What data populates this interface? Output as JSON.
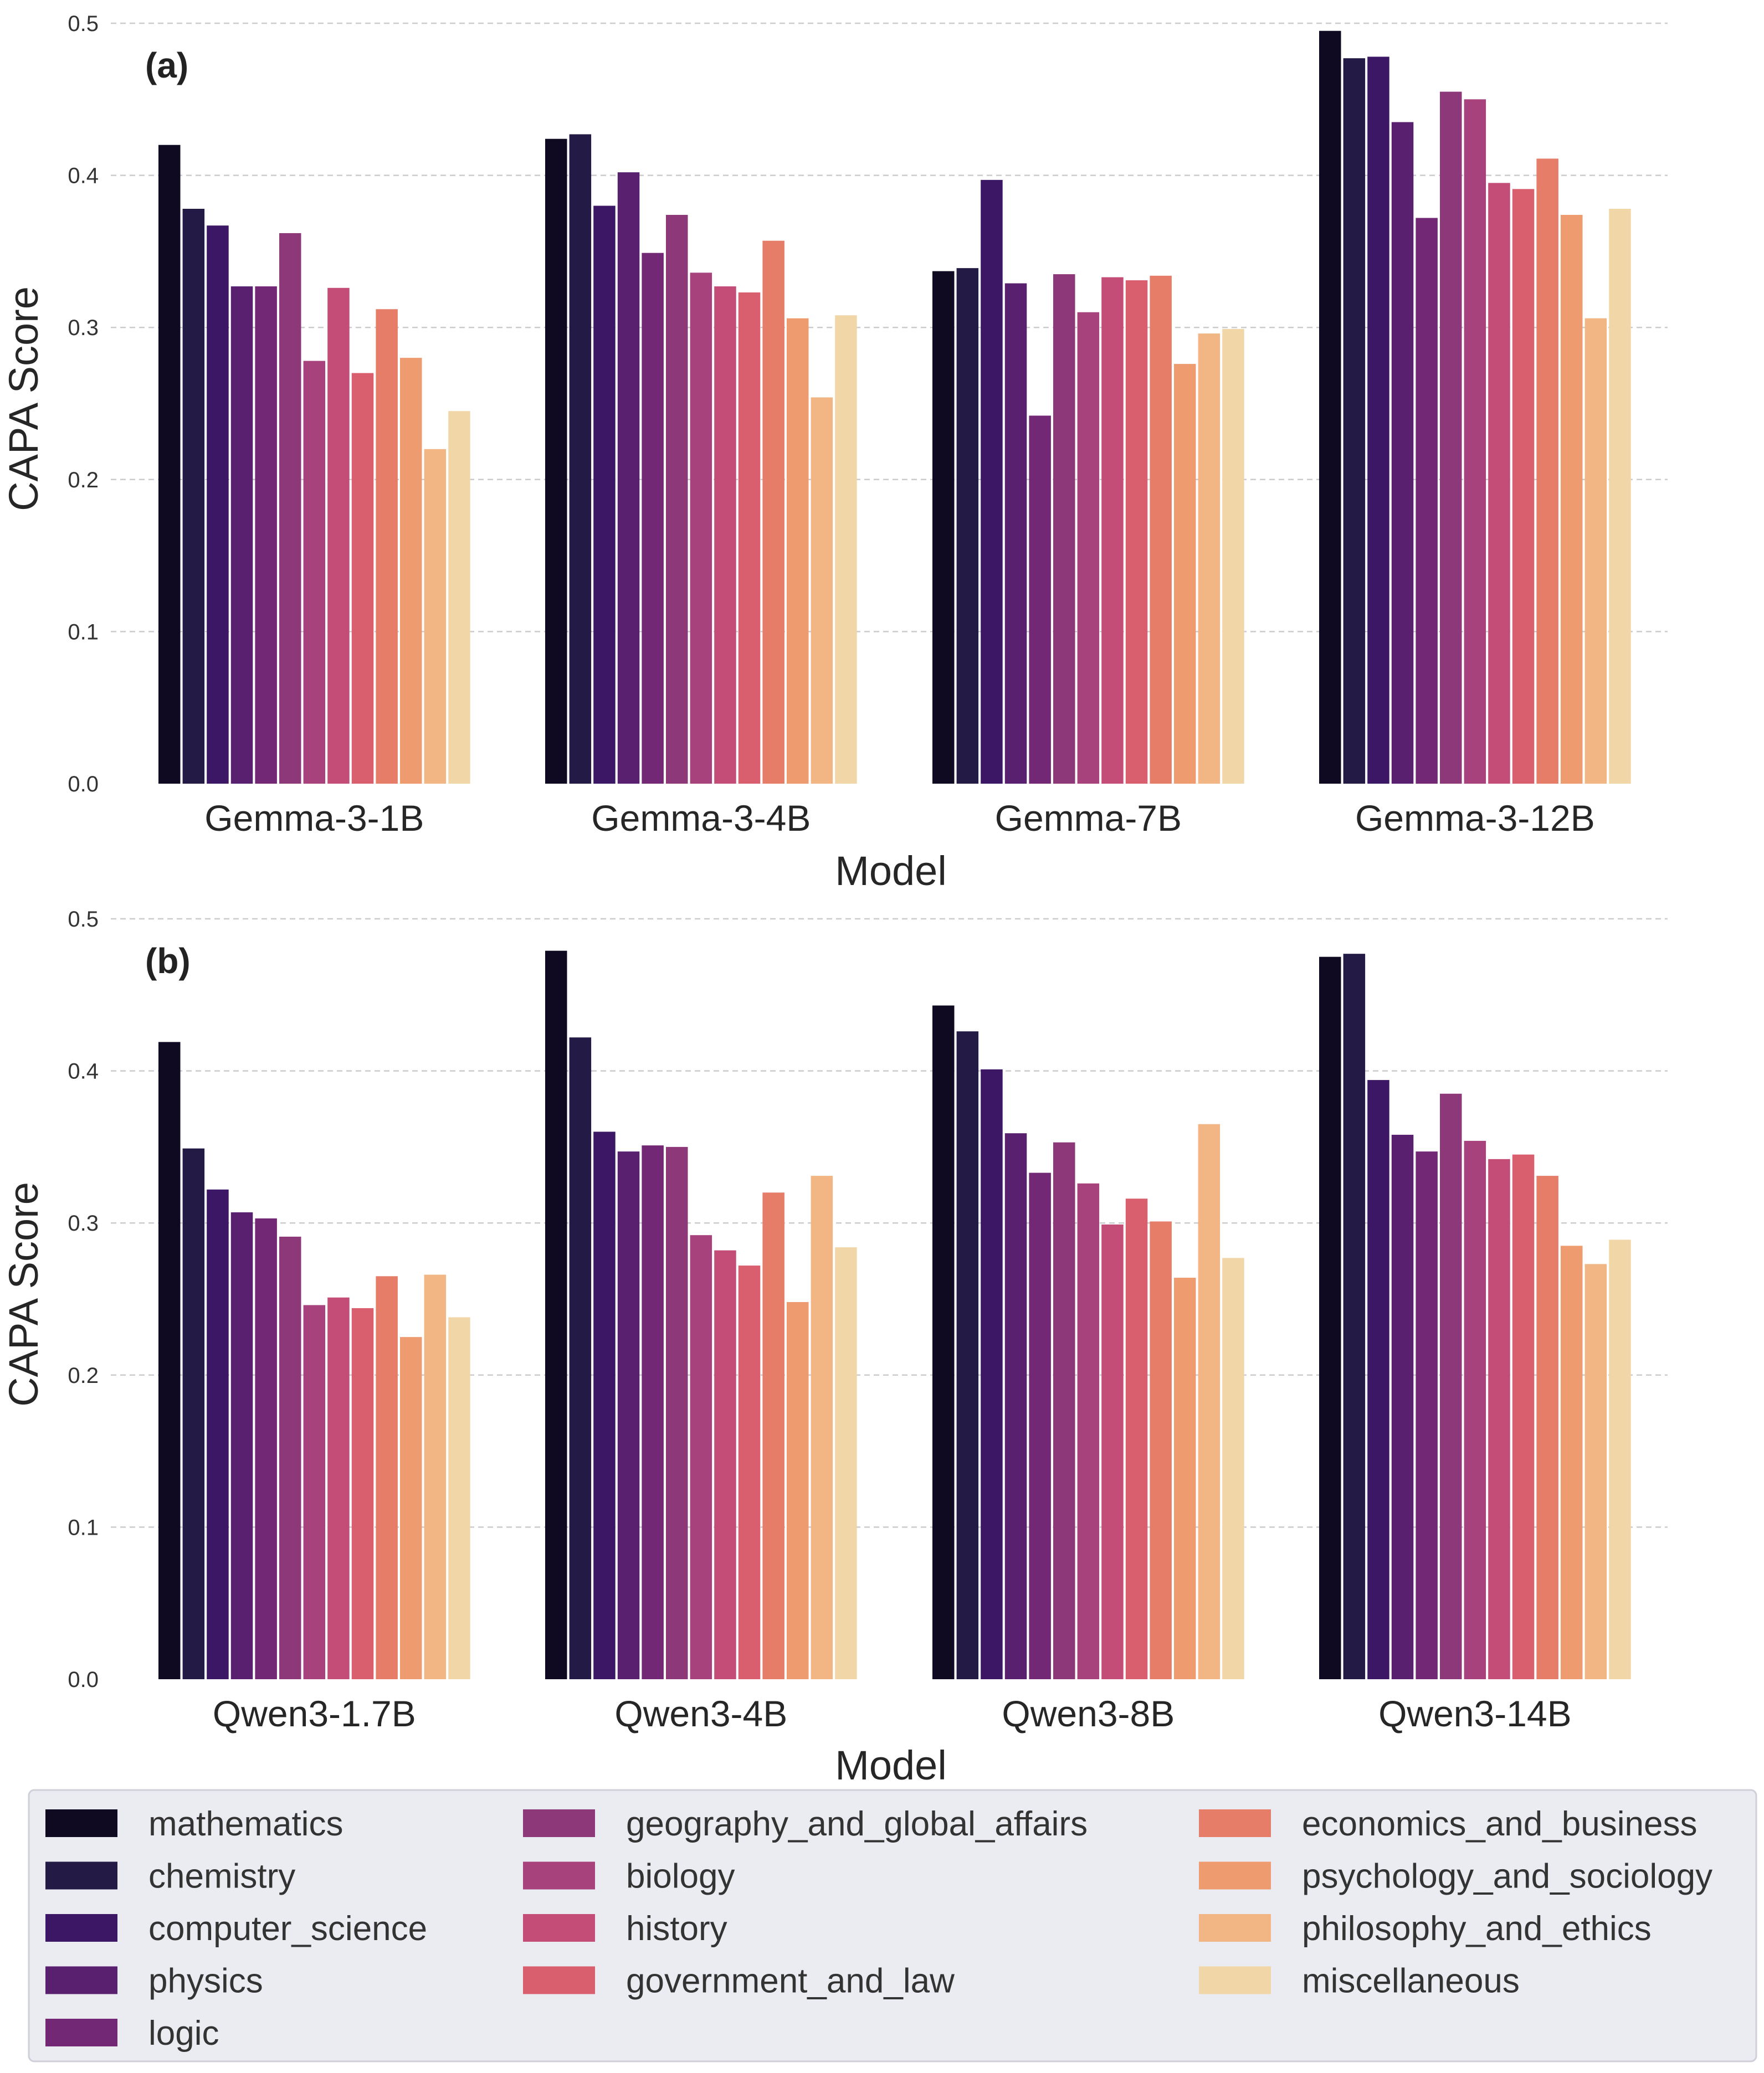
{
  "chart_data": {
    "type": "bar",
    "categories": [
      "mathematics",
      "chemistry",
      "computer_science",
      "physics",
      "logic",
      "geography_and_global_affairs",
      "biology",
      "history",
      "government_and_law",
      "economics_and_business",
      "psychology_and_sociology",
      "philosophy_and_ethics",
      "miscellaneous"
    ],
    "colors": [
      "#0f0a22",
      "#231a45",
      "#3b1765",
      "#59206f",
      "#722874",
      "#8c3879",
      "#a8427c",
      "#c44d78",
      "#d95f6e",
      "#e57d69",
      "#ed9b6f",
      "#f1b683",
      "#f1d7a8"
    ],
    "ylabel": "CAPA Score",
    "xlabel": "Model",
    "ylim": [
      0,
      0.5
    ],
    "yticks": [
      "0.0",
      "0.1",
      "0.2",
      "0.3",
      "0.4",
      "0.5"
    ],
    "grid": true,
    "legend_position": "bottom",
    "panels": [
      {
        "label": "(a)",
        "groups": [
          {
            "model": "Gemma-3-1B",
            "values": [
              0.42,
              0.378,
              0.367,
              0.327,
              0.327,
              0.362,
              0.278,
              0.326,
              0.27,
              0.312,
              0.28,
              0.22,
              0.245
            ]
          },
          {
            "model": "Gemma-3-4B",
            "values": [
              0.424,
              0.427,
              0.38,
              0.402,
              0.349,
              0.374,
              0.336,
              0.327,
              0.323,
              0.357,
              0.306,
              0.254,
              0.308
            ]
          },
          {
            "model": "Gemma-7B",
            "values": [
              0.337,
              0.339,
              0.397,
              0.329,
              0.242,
              0.335,
              0.31,
              0.333,
              0.331,
              0.334,
              0.276,
              0.296,
              0.299
            ]
          },
          {
            "model": "Gemma-3-12B",
            "values": [
              0.495,
              0.477,
              0.478,
              0.435,
              0.372,
              0.455,
              0.45,
              0.395,
              0.391,
              0.411,
              0.374,
              0.306,
              0.378
            ]
          }
        ]
      },
      {
        "label": "(b)",
        "groups": [
          {
            "model": "Qwen3-1.7B",
            "values": [
              0.419,
              0.349,
              0.322,
              0.307,
              0.303,
              0.291,
              0.246,
              0.251,
              0.244,
              0.265,
              0.225,
              0.266,
              0.238
            ]
          },
          {
            "model": "Qwen3-4B",
            "values": [
              0.479,
              0.422,
              0.36,
              0.347,
              0.351,
              0.35,
              0.292,
              0.282,
              0.272,
              0.32,
              0.248,
              0.331,
              0.284
            ]
          },
          {
            "model": "Qwen3-8B",
            "values": [
              0.443,
              0.426,
              0.401,
              0.359,
              0.333,
              0.353,
              0.326,
              0.299,
              0.316,
              0.301,
              0.264,
              0.365,
              0.277
            ]
          },
          {
            "model": "Qwen3-14B",
            "values": [
              0.475,
              0.477,
              0.394,
              0.358,
              0.347,
              0.385,
              0.354,
              0.342,
              0.345,
              0.331,
              0.285,
              0.273,
              0.289
            ]
          }
        ]
      }
    ]
  }
}
